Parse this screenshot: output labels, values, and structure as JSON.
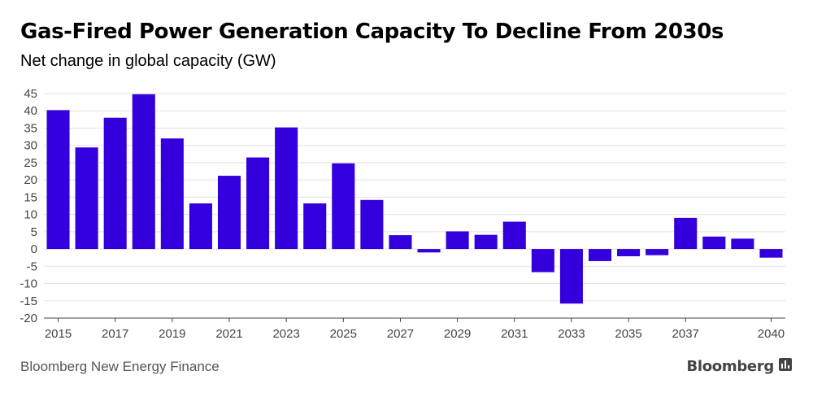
{
  "title": "Gas-Fired Power Generation Capacity To Decline From 2030s",
  "subtitle": "Net change in global capacity (GW)",
  "source": "Bloomberg New Energy Finance",
  "brand": "Bloomberg",
  "colors": {
    "bar": "#3300dd",
    "grid": "#e3e3e3",
    "axis": "#444444",
    "tick_text": "#444444"
  },
  "chart_data": {
    "type": "bar",
    "title": "Gas-Fired Power Generation Capacity To Decline From 2030s",
    "subtitle": "Net change in global capacity (GW)",
    "xlabel": "",
    "ylabel": "",
    "ylim": [
      -20,
      45
    ],
    "yticks": [
      45,
      40,
      35,
      30,
      25,
      20,
      15,
      10,
      5,
      0,
      -5,
      -10,
      -15,
      -20
    ],
    "xticks": [
      "2015",
      "2017",
      "2019",
      "2021",
      "2023",
      "2025",
      "2027",
      "2029",
      "2031",
      "2033",
      "2035",
      "2037",
      "2040"
    ],
    "grid": true,
    "categories": [
      "2015",
      "2016",
      "2017",
      "2018",
      "2019",
      "2020",
      "2021",
      "2022",
      "2023",
      "2024",
      "2025",
      "2026",
      "2027",
      "2028",
      "2029",
      "2030",
      "2031",
      "2032",
      "2033",
      "2034",
      "2035",
      "2036",
      "2037",
      "2038",
      "2039",
      "2040"
    ],
    "values": [
      40.2,
      29.4,
      38,
      44.8,
      32,
      13.2,
      21.2,
      26.5,
      35.2,
      13.2,
      24.8,
      14.2,
      4,
      -1,
      5.1,
      4.1,
      7.9,
      -6.7,
      -15.8,
      -3.5,
      -2.1,
      -1.8,
      9,
      3.6,
      3,
      -2.5
    ]
  }
}
